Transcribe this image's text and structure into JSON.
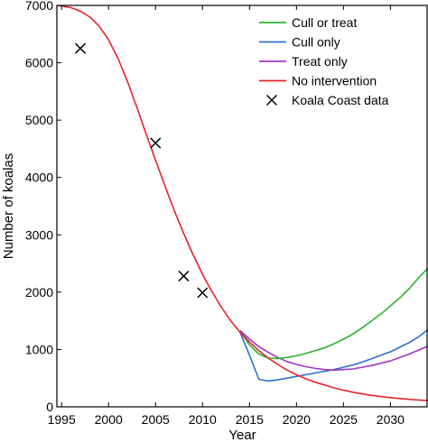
{
  "chart_data": {
    "type": "line",
    "title": "",
    "xlabel": "Year",
    "ylabel": "Number of koalas",
    "xlim": [
      1994.5,
      2034
    ],
    "ylim": [
      0,
      7000
    ],
    "xticks": [
      1995,
      2000,
      2005,
      2010,
      2015,
      2020,
      2025,
      2030
    ],
    "yticks": [
      0,
      1000,
      2000,
      3000,
      4000,
      5000,
      6000,
      7000
    ],
    "grid": false,
    "legend_position": "top-right",
    "colors": {
      "cull_or_treat": "#2bb52b",
      "cull_only": "#2f6fd0",
      "treat_only": "#a035c8",
      "no_intervention": "#e8232a",
      "data_marker": "#000000"
    },
    "series": [
      {
        "name": "Cull or treat",
        "style": "line",
        "x": [
          2014,
          2015,
          2016,
          2017,
          2018,
          2019,
          2020,
          2021,
          2022,
          2023,
          2024,
          2025,
          2026,
          2027,
          2028,
          2029,
          2030,
          2031,
          2032,
          2033,
          2034
        ],
        "y": [
          1320,
          1080,
          920,
          850,
          840,
          860,
          890,
          930,
          980,
          1030,
          1100,
          1180,
          1270,
          1380,
          1500,
          1620,
          1760,
          1900,
          2060,
          2250,
          2420
        ]
      },
      {
        "name": "Cull only",
        "style": "line",
        "x": [
          2014,
          2015,
          2016,
          2017,
          2018,
          2019,
          2020,
          2021,
          2022,
          2023,
          2024,
          2025,
          2026,
          2027,
          2028,
          2029,
          2030,
          2031,
          2032,
          2033,
          2034
        ],
        "y": [
          1300,
          900,
          480,
          450,
          470,
          500,
          530,
          560,
          590,
          620,
          650,
          690,
          730,
          780,
          840,
          900,
          960,
          1040,
          1120,
          1220,
          1350
        ]
      },
      {
        "name": "Treat only",
        "style": "line",
        "x": [
          2014,
          2015,
          2016,
          2017,
          2018,
          2019,
          2020,
          2021,
          2022,
          2023,
          2024,
          2025,
          2026,
          2027,
          2028,
          2029,
          2030,
          2031,
          2032,
          2033,
          2034
        ],
        "y": [
          1330,
          1180,
          1050,
          950,
          860,
          790,
          740,
          700,
          670,
          650,
          640,
          650,
          660,
          690,
          720,
          760,
          800,
          860,
          920,
          990,
          1060
        ]
      },
      {
        "name": "No intervention",
        "style": "line",
        "x": [
          1994.5,
          1995,
          1996,
          1997,
          1998,
          1999,
          2000,
          2001,
          2002,
          2003,
          2004,
          2005,
          2006,
          2007,
          2008,
          2009,
          2010,
          2011,
          2012,
          2013,
          2014,
          2015,
          2016,
          2017,
          2018,
          2019,
          2020,
          2021,
          2022,
          2023,
          2024,
          2025,
          2026,
          2027,
          2028,
          2029,
          2030,
          2031,
          2032,
          2033,
          2034
        ],
        "y": [
          7000,
          6990,
          6960,
          6900,
          6800,
          6640,
          6400,
          6080,
          5680,
          5230,
          4760,
          4300,
          3850,
          3420,
          3020,
          2650,
          2310,
          2010,
          1740,
          1500,
          1300,
          1130,
          980,
          850,
          740,
          640,
          560,
          490,
          430,
          380,
          330,
          290,
          255,
          225,
          200,
          180,
          160,
          145,
          130,
          118,
          108
        ]
      },
      {
        "name": "Koala Coast data",
        "style": "marker",
        "x": [
          1997,
          2005,
          2008,
          2010
        ],
        "y": [
          6250,
          4600,
          2280,
          1990
        ]
      }
    ]
  }
}
